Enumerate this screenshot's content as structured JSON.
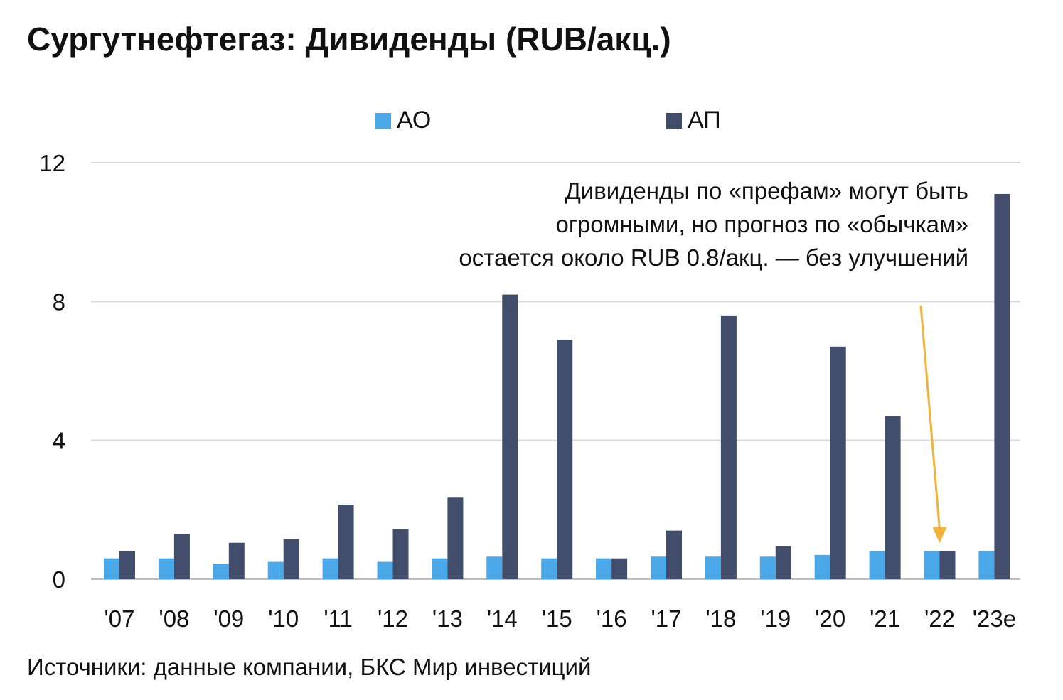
{
  "title": "Сургутнефтегаз: Дивиденды (RUB/акц.)",
  "source": "Источники: данные компании, БКС Мир инвестиций",
  "colors": {
    "ao": "#4aa8e8",
    "ap": "#424d6c",
    "grid": "#d9d9d9",
    "arrow": "#f0b23a"
  },
  "chart_data": {
    "type": "bar",
    "categories": [
      "'07",
      "'08",
      "'09",
      "'10",
      "'11",
      "'12",
      "'13",
      "'14",
      "'15",
      "'16",
      "'17",
      "'18",
      "'19",
      "'20",
      "'21",
      "'22",
      "'23e"
    ],
    "series": [
      {
        "name": "АО",
        "values": [
          0.6,
          0.6,
          0.45,
          0.5,
          0.6,
          0.5,
          0.6,
          0.65,
          0.6,
          0.6,
          0.65,
          0.65,
          0.65,
          0.7,
          0.8,
          0.8,
          0.82
        ]
      },
      {
        "name": "АП",
        "values": [
          0.8,
          1.3,
          1.05,
          1.15,
          2.15,
          1.45,
          2.35,
          8.2,
          6.9,
          0.6,
          1.4,
          7.6,
          0.95,
          6.7,
          4.7,
          0.8,
          11.1
        ]
      }
    ],
    "yticks": [
      0,
      4,
      8,
      12
    ],
    "ylim": [
      0,
      12
    ],
    "grid": true,
    "legend": "top",
    "annotation": {
      "lines": [
        "Дивиденды по «префам» могут быть",
        "огромными, но прогноз по «обычкам»",
        "остается около RUB 0.8/акц. — без улучшений"
      ],
      "points_to": "'22"
    }
  }
}
